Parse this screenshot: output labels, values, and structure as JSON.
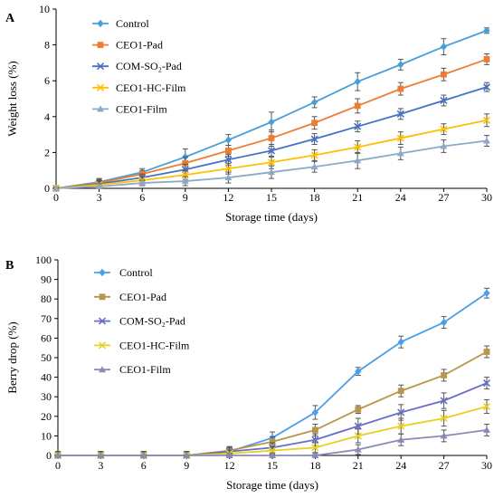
{
  "chart_data": [
    {
      "type": "line",
      "panel_label": "A",
      "xlabel": "Storage time (days)",
      "ylabel": "Weight loss (%)",
      "x": [
        0,
        3,
        6,
        9,
        12,
        15,
        18,
        21,
        24,
        27,
        30
      ],
      "xlim": [
        0,
        30
      ],
      "ylim": [
        0,
        10
      ],
      "xticks": [
        "0",
        "3",
        "6",
        "9",
        "12",
        "15",
        "18",
        "21",
        "24",
        "27",
        "30"
      ],
      "yticks": [
        "0",
        "2",
        "4",
        "6",
        "8",
        "10"
      ],
      "grid": false,
      "legend_position": "top-left",
      "series": [
        {
          "name": "Control",
          "color": "#4a9fd8",
          "marker": "diamond",
          "values": [
            0,
            0.35,
            0.9,
            1.75,
            2.7,
            3.7,
            4.8,
            5.95,
            6.9,
            7.9,
            8.8
          ],
          "errors": [
            0.05,
            0.2,
            0.2,
            0.45,
            0.3,
            0.55,
            0.3,
            0.5,
            0.3,
            0.45,
            0.15
          ]
        },
        {
          "name": "CEO1-Pad",
          "color": "#ed7d31",
          "marker": "square",
          "values": [
            0,
            0.3,
            0.8,
            1.4,
            2.1,
            2.8,
            3.65,
            4.6,
            5.55,
            6.35,
            7.2
          ],
          "errors": [
            0.05,
            0.2,
            0.2,
            0.35,
            0.3,
            0.45,
            0.35,
            0.4,
            0.35,
            0.35,
            0.3
          ]
        },
        {
          "name": "COM-SO₂-Pad",
          "color": "#4472c4",
          "marker": "x",
          "values": [
            0,
            0.25,
            0.6,
            1.05,
            1.6,
            2.1,
            2.75,
            3.45,
            4.15,
            4.9,
            5.65
          ],
          "errors": [
            0.05,
            0.2,
            0.2,
            0.3,
            0.3,
            0.35,
            0.3,
            0.3,
            0.3,
            0.3,
            0.25
          ]
        },
        {
          "name": "CEO1-HC-Film",
          "color": "#ffc000",
          "marker": "x",
          "values": [
            0,
            0.2,
            0.45,
            0.75,
            1.1,
            1.45,
            1.85,
            2.3,
            2.8,
            3.3,
            3.8
          ],
          "errors": [
            0.05,
            0.2,
            0.2,
            0.25,
            0.3,
            0.35,
            0.3,
            0.35,
            0.35,
            0.3,
            0.35
          ]
        },
        {
          "name": "CEO1-Film",
          "color": "#8ea9c8",
          "marker": "triangle",
          "values": [
            0,
            0.1,
            0.3,
            0.4,
            0.6,
            0.9,
            1.2,
            1.55,
            1.95,
            2.35,
            2.65
          ],
          "errors": [
            0.05,
            0.15,
            0.15,
            0.25,
            0.3,
            0.35,
            0.3,
            0.45,
            0.35,
            0.35,
            0.3
          ]
        }
      ]
    },
    {
      "type": "line",
      "panel_label": "B",
      "xlabel": "Storage time (days)",
      "ylabel": "Berry drop (%)",
      "x": [
        0,
        3,
        6,
        9,
        12,
        15,
        18,
        21,
        24,
        27,
        30
      ],
      "xlim": [
        0,
        30
      ],
      "ylim": [
        0,
        100
      ],
      "xticks": [
        "0",
        "3",
        "6",
        "9",
        "12",
        "15",
        "18",
        "21",
        "24",
        "27",
        "30"
      ],
      "yticks": [
        "0",
        "10",
        "20",
        "30",
        "40",
        "50",
        "60",
        "70",
        "80",
        "90",
        "100"
      ],
      "grid": false,
      "legend_position": "top-left",
      "series": [
        {
          "name": "Control",
          "color": "#4a9fe8",
          "marker": "diamond",
          "values": [
            0,
            0,
            0,
            0,
            2,
            9,
            22,
            43,
            58,
            68,
            83
          ],
          "errors": [
            2,
            2,
            2,
            2,
            2.5,
            3,
            3.5,
            2,
            3,
            3,
            2.5
          ]
        },
        {
          "name": "CEO1-Pad",
          "color": "#b8964a",
          "marker": "square",
          "values": [
            0,
            0,
            0,
            0,
            2.5,
            7,
            13,
            23.5,
            33,
            41,
            53
          ],
          "errors": [
            2,
            2,
            2,
            2,
            2,
            2.5,
            3,
            2,
            3,
            3,
            3
          ]
        },
        {
          "name": "COM-SO₂-Pad",
          "color": "#6a6ec4",
          "marker": "x",
          "values": [
            0,
            0,
            0,
            0,
            2,
            4,
            8,
            15,
            22,
            28,
            37
          ],
          "errors": [
            2,
            2,
            2,
            2,
            2,
            2.5,
            3,
            4,
            4,
            4,
            3
          ]
        },
        {
          "name": "CEO1-HC-Film",
          "color": "#e8d020",
          "marker": "x",
          "values": [
            0,
            0,
            0,
            0,
            1,
            2.5,
            4,
            10,
            15,
            19,
            25
          ],
          "errors": [
            2,
            2,
            2,
            2,
            1.5,
            2,
            2.5,
            3.5,
            4,
            4,
            3.5
          ]
        },
        {
          "name": "CEO1-Film",
          "color": "#8a8ab8",
          "marker": "triangle",
          "values": [
            0,
            0,
            0,
            0,
            0,
            0,
            0,
            3,
            8,
            10,
            13
          ],
          "errors": [
            2,
            2,
            2,
            2,
            1,
            1,
            1,
            2.5,
            3,
            3,
            3
          ]
        }
      ]
    }
  ]
}
